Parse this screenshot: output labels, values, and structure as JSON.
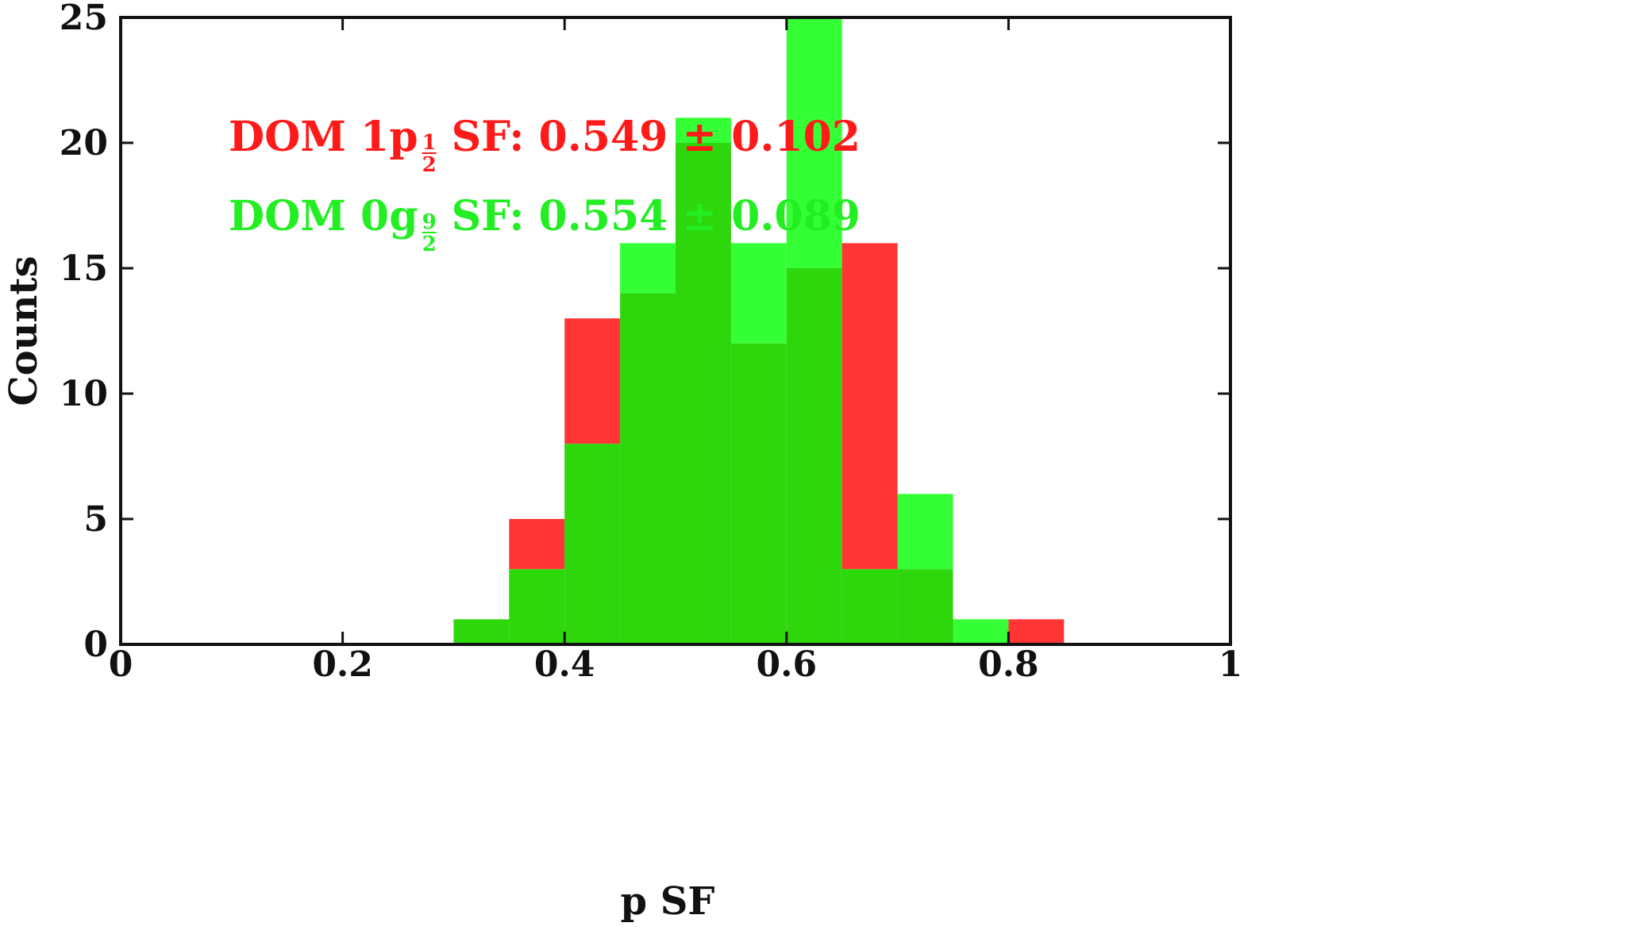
{
  "chart_data": {
    "type": "bar",
    "subtype": "overlapping-histogram",
    "xlabel": "p SF",
    "ylabel": "Counts",
    "xlim": [
      0,
      1
    ],
    "ylim": [
      0,
      25
    ],
    "xticks": [
      0,
      0.2,
      0.4,
      0.6,
      0.8,
      1
    ],
    "xtick_labels": [
      "0",
      "0.2",
      "0.4",
      "0.6",
      "0.8",
      "1"
    ],
    "yticks": [
      0,
      5,
      10,
      15,
      20,
      25
    ],
    "ytick_labels": [
      "0",
      "5",
      "10",
      "15",
      "20",
      "25"
    ],
    "grid": false,
    "bin_edges": [
      0.3,
      0.35,
      0.4,
      0.45,
      0.5,
      0.55,
      0.6,
      0.65,
      0.7,
      0.75,
      0.8,
      0.85
    ],
    "series": [
      {
        "color": "#ff3535",
        "values": [
          1,
          5,
          13,
          14,
          20,
          12,
          15,
          16,
          3,
          0,
          1
        ],
        "annotation": {
          "prefix": "DOM 1p",
          "sub_num": "1",
          "sub_den": "2",
          "text": "SF: 0.549 ± 0.102"
        }
      },
      {
        "color": "#35ff35",
        "values": [
          1,
          3,
          8,
          16,
          21,
          16,
          25,
          3,
          6,
          1,
          0
        ],
        "annotation": {
          "prefix": "DOM 0g",
          "sub_num": "9",
          "sub_den": "2",
          "text": "SF: 0.554 ± 0.089"
        }
      }
    ],
    "overlap_color": "#2ed60c"
  }
}
